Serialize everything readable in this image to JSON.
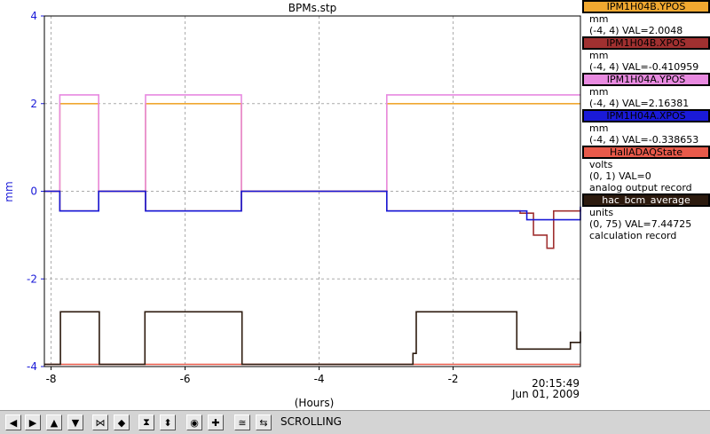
{
  "window": {
    "title": "BPMs.stp"
  },
  "chart_data": {
    "type": "line",
    "title": "BPMs.stp",
    "xlabel": "(Hours)",
    "ylabel": "mm",
    "xlim": [
      -8.1,
      -0.1
    ],
    "ylim": [
      -4,
      4
    ],
    "x_ticks": [
      "-8",
      "-6",
      "-4",
      "-2"
    ],
    "y_ticks": [
      "4",
      "2",
      "0",
      "-2",
      "-4"
    ],
    "grid": true,
    "timestamp": "20:15:49",
    "date": "Jun 01, 2009",
    "series": [
      {
        "name": "IPM1H04B.YPOS",
        "color": "#f0a830",
        "x": [
          -8.1,
          -7.88,
          -7.87,
          -7.3,
          -7.29,
          -6.6,
          -6.59,
          -5.17,
          -5.16,
          -3.0,
          -2.99,
          -1.62,
          -1.6,
          -0.1
        ],
        "y": [
          0,
          0,
          2.0,
          2.0,
          0,
          0,
          2.0,
          2.0,
          0,
          0,
          2.0,
          2.0,
          2.0,
          2.0
        ]
      },
      {
        "name": "IPM1H04B.XPOS",
        "color": "#a03030",
        "x": [
          -8.1,
          -7.88,
          -7.87,
          -7.3,
          -7.29,
          -6.6,
          -6.59,
          -5.17,
          -5.16,
          -3.0,
          -2.99,
          -1.0,
          -0.8,
          -0.6,
          -0.5,
          -0.1
        ],
        "y": [
          0,
          0,
          -0.45,
          -0.45,
          0,
          0,
          -0.45,
          -0.45,
          0,
          0,
          -0.45,
          -0.5,
          -1.0,
          -1.3,
          -0.45,
          -0.4
        ]
      },
      {
        "name": "IPM1H04A.YPOS",
        "color": "#e88ae0",
        "x": [
          -8.1,
          -7.88,
          -7.87,
          -7.3,
          -7.29,
          -6.6,
          -6.59,
          -5.17,
          -5.16,
          -3.0,
          -2.99,
          -0.1
        ],
        "y": [
          0,
          0,
          2.2,
          2.2,
          0,
          0,
          2.2,
          2.2,
          0,
          0,
          2.2,
          2.2
        ]
      },
      {
        "name": "IPM1H04A.XPOS",
        "color": "#1a1ad8",
        "x": [
          -8.1,
          -7.88,
          -7.87,
          -7.3,
          -7.29,
          -6.6,
          -6.59,
          -5.17,
          -5.16,
          -3.0,
          -2.99,
          -1.0,
          -0.9,
          -0.1
        ],
        "y": [
          0,
          0,
          -0.45,
          -0.45,
          0,
          0,
          -0.45,
          -0.45,
          0,
          0,
          -0.45,
          -0.45,
          -0.65,
          -0.35
        ]
      },
      {
        "name": "HallADAQState",
        "color": "#e85a4a",
        "x": [
          -8.1,
          -0.1
        ],
        "y": [
          -3.95,
          -3.95
        ]
      },
      {
        "name": "hac_bcm_average",
        "color": "#2c1a0e",
        "x": [
          -8.1,
          -7.88,
          -7.86,
          -7.3,
          -7.28,
          -6.62,
          -6.6,
          -5.17,
          -5.15,
          -3.0,
          -2.6,
          -2.55,
          -1.1,
          -1.05,
          -0.3,
          -0.25,
          -0.1
        ],
        "y": [
          -3.95,
          -3.95,
          -2.75,
          -2.75,
          -3.95,
          -3.95,
          -2.75,
          -2.75,
          -3.95,
          -3.95,
          -3.7,
          -2.75,
          -2.75,
          -3.6,
          -3.6,
          -3.45,
          -3.2
        ]
      }
    ]
  },
  "legend": [
    {
      "title": "IPM1H04B.YPOS",
      "bg": "#f0a830",
      "border": "#000000",
      "unit": "mm",
      "range": "(-4, 4) VAL=2.0048",
      "extra": ""
    },
    {
      "title": "IPM1H04B.XPOS",
      "bg": "#a03030",
      "border": "#000000",
      "unit": "mm",
      "range": "(-4, 4) VAL=-0.410959",
      "extra": ""
    },
    {
      "title": "IPM1H04A.YPOS",
      "bg": "#e88ae0",
      "border": "#000000",
      "unit": "mm",
      "range": "(-4, 4) VAL=2.16381",
      "extra": ""
    },
    {
      "title": "IPM1H04A.XPOS",
      "bg": "#1a1ad8",
      "border": "#000000",
      "unit": "mm",
      "range": "(-4, 4) VAL=-0.338653",
      "extra": ""
    },
    {
      "title": "HallADAQState",
      "bg": "#e85a4a",
      "border": "#000000",
      "unit": "volts",
      "range": "(0, 1) VAL=0",
      "extra": "analog output record"
    },
    {
      "title": "hac_bcm_average",
      "bg": "#2c1a0e",
      "border": "#000000",
      "unit": "units",
      "range": "(0, 75) VAL=7.44725",
      "extra": "calculation record"
    }
  ],
  "toolbar": {
    "status": "SCROLLING",
    "buttons": [
      {
        "name": "scroll-left-button",
        "glyph": "◀"
      },
      {
        "name": "scroll-right-button",
        "glyph": "▶"
      },
      {
        "name": "scroll-up-button",
        "glyph": "▲"
      },
      {
        "name": "scroll-down-button",
        "glyph": "▼"
      },
      {
        "name": "zoom-in-x-button",
        "glyph": "⋈"
      },
      {
        "name": "zoom-out-x-button",
        "glyph": "◆"
      },
      {
        "name": "zoom-in-y-button",
        "glyph": "⧗"
      },
      {
        "name": "zoom-out-y-button",
        "glyph": "⬍"
      },
      {
        "name": "reset-button",
        "glyph": "◉"
      },
      {
        "name": "crosshair-button",
        "glyph": "✚"
      },
      {
        "name": "auto-scale-button",
        "glyph": "≅"
      },
      {
        "name": "scrolling-toggle-button",
        "glyph": "⇆"
      }
    ]
  }
}
